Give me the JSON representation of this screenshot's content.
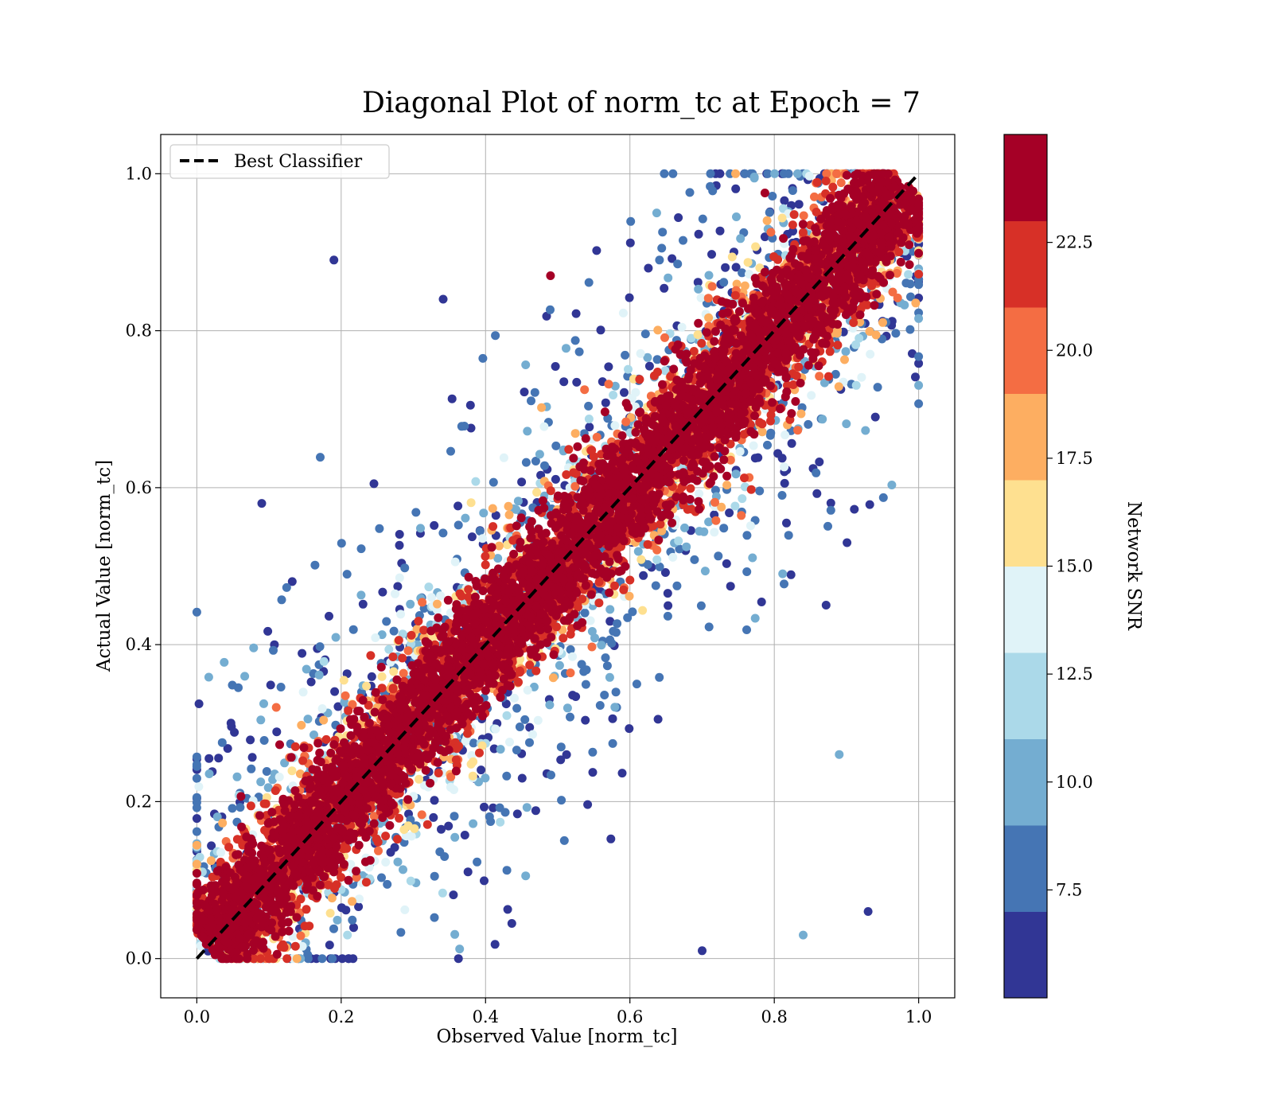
{
  "chart_data": {
    "type": "scatter",
    "title": "Diagonal Plot of norm_tc at Epoch = 7",
    "xlabel": "Observed Value [norm_tc]",
    "ylabel": "Actual Value [norm_tc]",
    "xlim": [
      -0.05,
      1.05
    ],
    "ylim": [
      -0.05,
      1.05
    ],
    "xticks": [
      "0.0",
      "0.2",
      "0.4",
      "0.6",
      "0.8",
      "1.0"
    ],
    "yticks": [
      "0.0",
      "0.2",
      "0.4",
      "0.6",
      "0.8",
      "1.0"
    ],
    "grid": true,
    "reference_line": {
      "name": "Best Classifier",
      "x": [
        0.0,
        1.0
      ],
      "y": [
        0.0,
        1.0
      ],
      "color": "#000000",
      "style": "dashed"
    },
    "legend": {
      "position": "top-left",
      "entries": [
        "Best Classifier"
      ]
    },
    "colorbar": {
      "label": "Network SNR",
      "range": [
        5.0,
        25.0
      ],
      "ticks": [
        "7.5",
        "10.0",
        "12.5",
        "15.0",
        "17.5",
        "20.0",
        "22.5"
      ],
      "colors": [
        "#313695",
        "#4575b4",
        "#74add1",
        "#abd9e9",
        "#e0f3f8",
        "#fee090",
        "#fdae61",
        "#f46d43",
        "#d73027",
        "#a50026"
      ]
    },
    "point_count_approx": 20000,
    "series_description_values": {
      "high_snr_band_halfwidth": 0.08,
      "mid_snr_band_halfwidth": 0.15,
      "low_snr_spread": 0.6
    },
    "sample_points": [
      {
        "x": 0.1,
        "y": 0.1,
        "snr": 24
      },
      {
        "x": 0.3,
        "y": 0.3,
        "snr": 24
      },
      {
        "x": 0.5,
        "y": 0.5,
        "snr": 24
      },
      {
        "x": 0.7,
        "y": 0.7,
        "snr": 24
      },
      {
        "x": 0.9,
        "y": 0.9,
        "snr": 24
      },
      {
        "x": 0.49,
        "y": 0.87,
        "snr": 24
      },
      {
        "x": 0.11,
        "y": 0.32,
        "snr": 20
      },
      {
        "x": 0.09,
        "y": 0.58,
        "snr": 6
      },
      {
        "x": 0.19,
        "y": 0.89,
        "snr": 6
      },
      {
        "x": 0.93,
        "y": 0.06,
        "snr": 6
      },
      {
        "x": 0.89,
        "y": 0.26,
        "snr": 9
      },
      {
        "x": 0.94,
        "y": 0.69,
        "snr": 6
      },
      {
        "x": 0.7,
        "y": 0.01,
        "snr": 6
      },
      {
        "x": 0.84,
        "y": 0.03,
        "snr": 10
      }
    ]
  }
}
